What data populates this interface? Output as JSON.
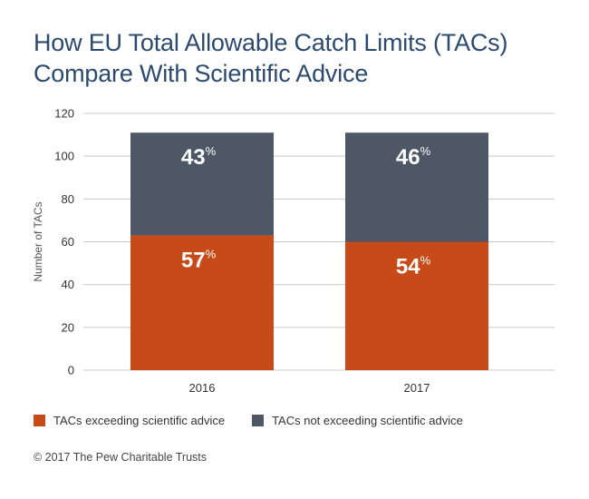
{
  "title_lines": [
    "How EU Total Allowable Catch Limits (TACs)",
    "Compare With Scientific Advice"
  ],
  "chart_data": {
    "type": "bar",
    "stacked": true,
    "categories": [
      "2016",
      "2017"
    ],
    "series": [
      {
        "name": "TACs exceeding scientific advice",
        "values": [
          63,
          60
        ],
        "labels": [
          "57",
          "54"
        ],
        "color": "#c64b19"
      },
      {
        "name": "TACs not exceeding scientific advice",
        "values": [
          48,
          51
        ],
        "labels": [
          "43",
          "46"
        ],
        "color": "#4e5766"
      }
    ],
    "percent_sign": "%",
    "ylabel": "Number of TACs",
    "xlabel": "",
    "ylim": [
      0,
      120
    ],
    "yticks": [
      "0",
      "20",
      "40",
      "60",
      "80",
      "100",
      "120"
    ],
    "grid": true,
    "legend_placement": "bottom"
  },
  "credit": "© 2017 The Pew Charitable Trusts"
}
